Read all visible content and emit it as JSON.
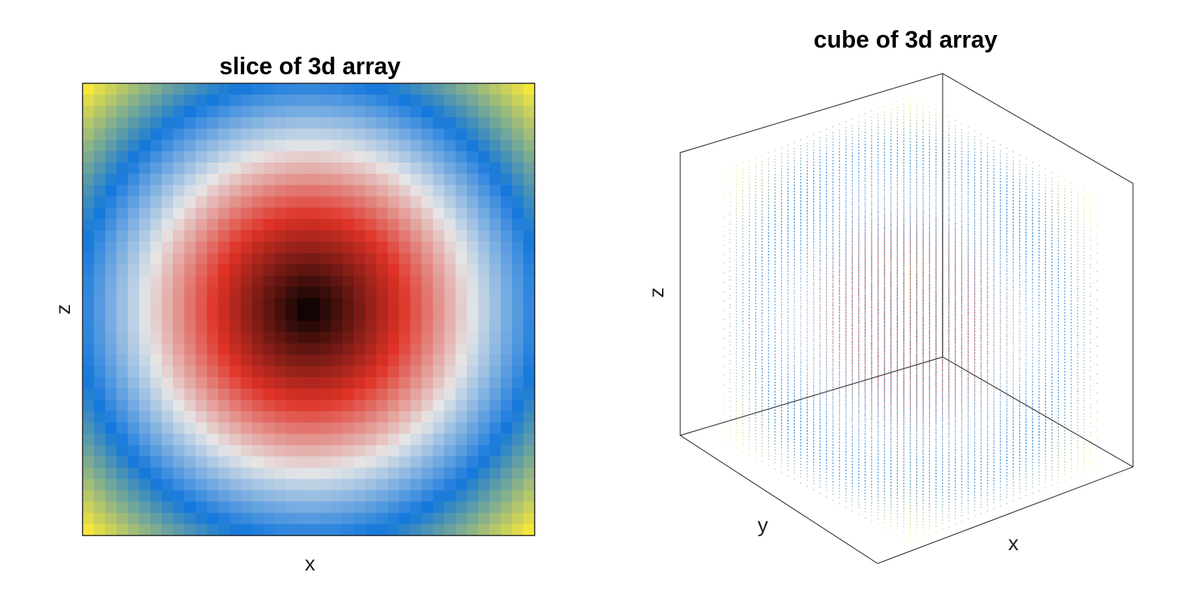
{
  "colormap": [
    "#000000",
    "#e03226",
    "#e6e6e6",
    "#1478dc",
    "#f5e63c"
  ],
  "chart_data": [
    {
      "type": "heatmap",
      "title": "slice of 3d array",
      "xlabel": "x",
      "ylabel": "z",
      "grid_size": 40,
      "field": "radial",
      "ticks": false,
      "grid": false
    },
    {
      "type": "scatter",
      "title": "cube of 3d array",
      "xlabel": "x",
      "ylabel": "y",
      "zlabel": "z",
      "view": "isometric",
      "ticks": false,
      "grid": false
    }
  ]
}
